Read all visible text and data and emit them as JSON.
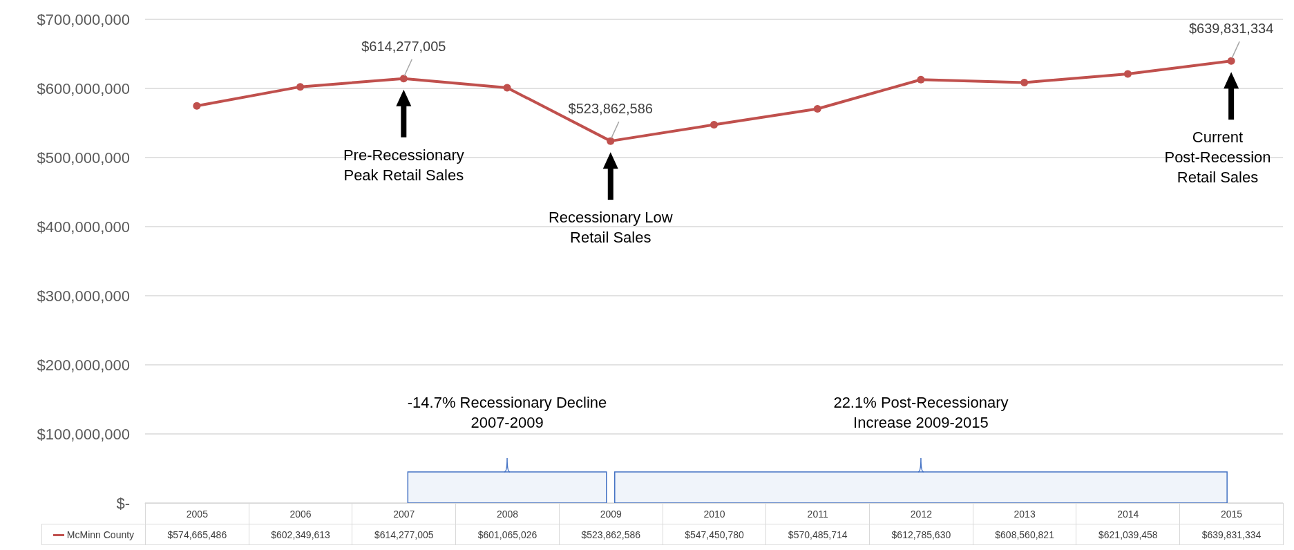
{
  "chart_data": {
    "type": "line",
    "categories": [
      "2005",
      "2006",
      "2007",
      "2008",
      "2009",
      "2010",
      "2011",
      "2012",
      "2013",
      "2014",
      "2015"
    ],
    "series": [
      {
        "name": "McMinn County",
        "color": "#c0504d",
        "values": [
          574665486,
          602349613,
          614277005,
          601065026,
          523862586,
          547450780,
          570485714,
          612785630,
          608560821,
          621039458,
          639831334
        ],
        "value_labels": [
          "$574,665,486",
          "$602,349,613",
          "$614,277,005",
          "$601,065,026",
          "$523,862,586",
          "$547,450,780",
          "$570,485,714",
          "$612,785,630",
          "$608,560,821",
          "$621,039,458",
          "$639,831,334"
        ]
      }
    ],
    "ylim": [
      0,
      700000000
    ],
    "yticks": [
      {
        "value": 0,
        "label": "$-"
      },
      {
        "value": 100000000,
        "label": "$100,000,000"
      },
      {
        "value": 200000000,
        "label": "$200,000,000"
      },
      {
        "value": 300000000,
        "label": "$300,000,000"
      },
      {
        "value": 400000000,
        "label": "$400,000,000"
      },
      {
        "value": 500000000,
        "label": "$500,000,000"
      },
      {
        "value": 600000000,
        "label": "$600,000,000"
      },
      {
        "value": 700000000,
        "label": "$700,000,000"
      }
    ],
    "annotations": [
      {
        "text": "$614,277,005",
        "x": "2007",
        "y": 614277005
      },
      {
        "text": "$523,862,586",
        "x": "2009",
        "y": 523862586
      },
      {
        "text": "$639,831,334",
        "x": "2015",
        "y": 639831334
      },
      "Pre-Recessionary Peak Retail Sales",
      "Recessionary Low Retail Sales",
      "Current Post-Recession Retail Sales"
    ],
    "data_labels": true,
    "bands": [
      {
        "axis": "x",
        "from": "2007",
        "to": "2009",
        "label": "-14.7% Recessionary Decline 2007-2009",
        "color": "#4472c4"
      },
      {
        "axis": "x",
        "from": "2009",
        "to": "2015",
        "label": "22.1% Post-Recessionary Increase 2009-2015",
        "color": "#4472c4"
      }
    ],
    "grid": "y",
    "legend": "bottom",
    "marker": "circle",
    "line_style": "solid"
  }
}
